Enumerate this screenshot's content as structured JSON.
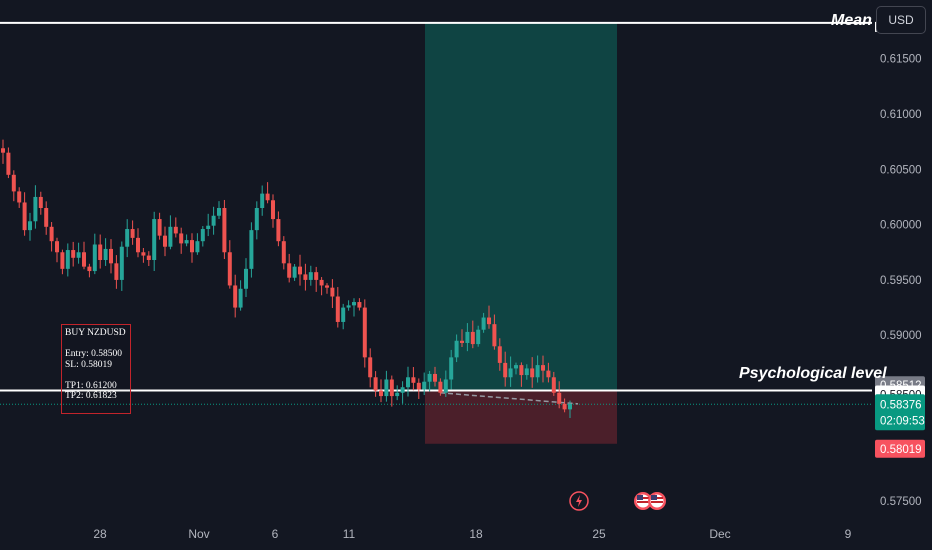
{
  "toolbar": {
    "currency_label": "USD"
  },
  "annotations": {
    "mean_label": "Mean",
    "psych_label": "Psychological level",
    "trade_lines": [
      "BUY NZDUSD",
      "",
      "Entry:  0.58500",
      "SL:    0.58019",
      "",
      "TP1: 0.61200",
      "TP2: 0.61823"
    ]
  },
  "price_axis": {
    "ticks": [
      "0.61500",
      "0.61000",
      "0.60500",
      "0.60000",
      "0.59500",
      "0.59000",
      "0.57500"
    ],
    "tick_values": [
      0.615,
      0.61,
      0.605,
      0.6,
      0.595,
      0.59,
      0.575
    ],
    "top_tag": "0.61823",
    "markers": [
      {
        "name": "marker-previous-close",
        "value": 0.58512,
        "label": "0.58512",
        "bg": "#787b86",
        "color": "#ffffff"
      },
      {
        "name": "marker-entry",
        "value": 0.585,
        "label": "0.58500",
        "bg": "#ffffff",
        "color": "#131722"
      },
      {
        "name": "marker-last-price",
        "value": 0.58376,
        "label": "0.58376",
        "sublabel": "02:09:53",
        "bg": "#089981",
        "color": "#ffffff"
      },
      {
        "name": "marker-stop-loss",
        "value": 0.58019,
        "label": "0.58019",
        "bg": "#f7525f",
        "color": "#ffffff"
      }
    ]
  },
  "time_axis": {
    "labels": [
      "28",
      "Nov",
      "6",
      "11",
      "18",
      "25",
      "Dec",
      "9"
    ]
  },
  "event_icons": [
    "lightning-icon",
    "us-flag-icon",
    "us-flag-icon"
  ],
  "colors": {
    "background": "#131722",
    "up": "#26a69a",
    "down": "#ef5350",
    "target_zone": "rgba(8,153,129,0.35)",
    "stop_zone": "rgba(242,54,69,0.25)",
    "axis_text": "#b2b5be",
    "level_line": "#ffffff"
  },
  "chart_data": {
    "type": "candlestick",
    "symbol": "NZDUSD",
    "ylim": [
      0.5733,
      0.6203
    ],
    "levels": [
      {
        "name": "mean",
        "value": 0.61823
      },
      {
        "name": "psychological",
        "value": 0.585
      }
    ],
    "position": {
      "side": "long",
      "entry": 0.585,
      "stop": 0.58019,
      "target": 0.61823
    },
    "close_path": [
      0.6065,
      0.6045,
      0.603,
      0.602,
      0.5995,
      0.6003,
      0.6025,
      0.6015,
      0.5998,
      0.5985,
      0.5975,
      0.596,
      0.5977,
      0.597,
      0.5975,
      0.5962,
      0.5958,
      0.5982,
      0.5968,
      0.5978,
      0.5965,
      0.595,
      0.598,
      0.5996,
      0.5988,
      0.5975,
      0.5972,
      0.5968,
      0.6005,
      0.599,
      0.598,
      0.5998,
      0.5992,
      0.5983,
      0.5986,
      0.5975,
      0.5985,
      0.5996,
      0.5999,
      0.6008,
      0.6015,
      0.5975,
      0.5945,
      0.5925,
      0.5942,
      0.596,
      0.5995,
      0.6015,
      0.6028,
      0.6022,
      0.6005,
      0.5985,
      0.5965,
      0.5952,
      0.5962,
      0.5955,
      0.595,
      0.5957,
      0.595,
      0.5945,
      0.5943,
      0.5935,
      0.5912,
      0.5925,
      0.5927,
      0.593,
      0.5925,
      0.588,
      0.5862,
      0.585,
      0.5845,
      0.586,
      0.5845,
      0.5848,
      0.5853,
      0.5862,
      0.5857,
      0.5851,
      0.5858,
      0.5865,
      0.5858,
      0.5848,
      0.586,
      0.588,
      0.5895,
      0.5893,
      0.5903,
      0.5892,
      0.5905,
      0.5916,
      0.591,
      0.589,
      0.5875,
      0.5862,
      0.587,
      0.5873,
      0.5864,
      0.587,
      0.5862,
      0.5873,
      0.5868,
      0.5862,
      0.5848,
      0.5838,
      0.5833,
      0.5838
    ]
  }
}
